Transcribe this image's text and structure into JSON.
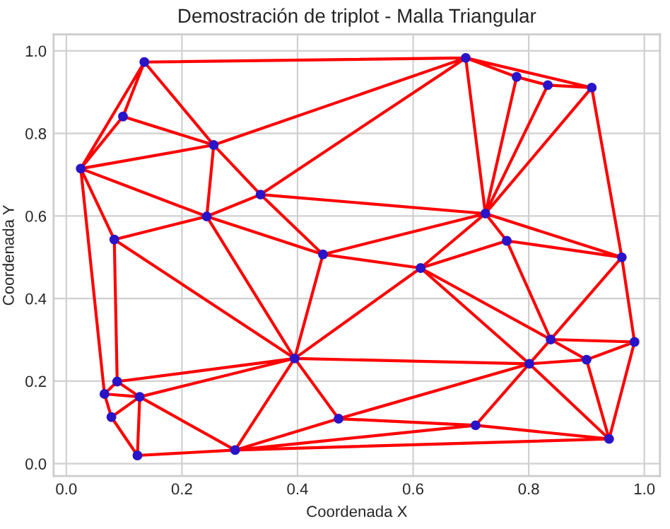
{
  "chart_data": {
    "type": "line",
    "title": "Demostración de triplot - Malla Triangular",
    "xlabel": "Coordenada X",
    "ylabel": "Coordenada Y",
    "xlim": [
      -0.022,
      1.027
    ],
    "ylim": [
      -0.03,
      1.04
    ],
    "xticks": [
      {
        "value": 0,
        "label": "0.0"
      },
      {
        "value": 0.2,
        "label": "0.2"
      },
      {
        "value": 0.4,
        "label": "0.4"
      },
      {
        "value": 0.6,
        "label": "0.6"
      },
      {
        "value": 0.8,
        "label": "0.8"
      },
      {
        "value": 1,
        "label": "1.0"
      }
    ],
    "yticks": [
      {
        "value": 0,
        "label": "0.0"
      },
      {
        "value": 0.2,
        "label": "0.2"
      },
      {
        "value": 0.4,
        "label": "0.4"
      },
      {
        "value": 0.6,
        "label": "0.6"
      },
      {
        "value": 0.8,
        "label": "0.8"
      },
      {
        "value": 1,
        "label": "1.0"
      }
    ],
    "grid": true,
    "series": [
      {
        "color": "#ff0000",
        "line_style": "solid",
        "marker": "none",
        "x": [
          0.691,
          0.135,
          0.098,
          0.025,
          0.135,
          0.255,
          0.098,
          null,
          0.025,
          0.255,
          0.691,
          0.336,
          0.255,
          0.243,
          0.025,
          0.083,
          0.243,
          0.336,
          0.444,
          0.243,
          0.395,
          0.083,
          0.088,
          null,
          0.025,
          0.066,
          0.088,
          0.127,
          0.066,
          0.078,
          0.127,
          0.123,
          0.078,
          null,
          0.088,
          0.395,
          0.127,
          0.292,
          0.123,
          null,
          0.395,
          0.292,
          0.471,
          0.395,
          0.444,
          0.725,
          0.336,
          null,
          0.444,
          0.613,
          0.395,
          0.801,
          0.471,
          0.708,
          0.292,
          0.939,
          0.708,
          0.801,
          0.939,
          0.9,
          0.983,
          0.939,
          null,
          0.613,
          0.801,
          0.838,
          0.613,
          0.762,
          0.838,
          0.961,
          0.983,
          0.838,
          0.9,
          0.801,
          null,
          0.613,
          0.725,
          0.762,
          0.961,
          0.725,
          0.691,
          0.779,
          0.725,
          0.833,
          0.779,
          null,
          0.691,
          0.909,
          0.833,
          null,
          0.725,
          0.909,
          0.961
        ],
        "values": [
          0.983,
          0.973,
          0.841,
          0.715,
          0.973,
          0.772,
          0.841,
          null,
          0.715,
          0.772,
          0.983,
          0.652,
          0.772,
          0.599,
          0.715,
          0.543,
          0.599,
          0.652,
          0.507,
          0.599,
          0.255,
          0.543,
          0.199,
          null,
          0.715,
          0.169,
          0.199,
          0.162,
          0.169,
          0.113,
          0.162,
          0.02,
          0.113,
          null,
          0.199,
          0.255,
          0.162,
          0.033,
          0.02,
          null,
          0.255,
          0.033,
          0.109,
          0.255,
          0.507,
          0.606,
          0.652,
          null,
          0.507,
          0.474,
          0.255,
          0.242,
          0.109,
          0.093,
          0.033,
          0.06,
          0.093,
          0.242,
          0.06,
          0.252,
          0.295,
          0.06,
          null,
          0.474,
          0.242,
          0.301,
          0.474,
          0.54,
          0.301,
          0.5,
          0.295,
          0.301,
          0.252,
          0.242,
          null,
          0.474,
          0.606,
          0.54,
          0.5,
          0.606,
          0.983,
          0.937,
          0.606,
          0.917,
          0.937,
          null,
          0.983,
          0.911,
          0.917,
          null,
          0.606,
          0.911,
          0.5
        ]
      },
      {
        "type": "scatter",
        "color": "#2a14c8",
        "marker": "circle",
        "x": [
          0.135,
          0.098,
          0.025,
          0.255,
          0.336,
          0.243,
          0.083,
          0.444,
          0.691,
          0.779,
          0.833,
          0.909,
          0.725,
          0.762,
          0.961,
          0.613,
          0.838,
          0.983,
          0.801,
          0.9,
          0.708,
          0.939,
          0.395,
          0.088,
          0.066,
          0.127,
          0.078,
          0.123,
          0.292,
          0.471
        ],
        "values": [
          0.973,
          0.841,
          0.715,
          0.772,
          0.652,
          0.599,
          0.543,
          0.507,
          0.983,
          0.937,
          0.917,
          0.911,
          0.606,
          0.54,
          0.5,
          0.474,
          0.301,
          0.295,
          0.242,
          0.252,
          0.093,
          0.06,
          0.255,
          0.199,
          0.169,
          0.162,
          0.113,
          0.02,
          0.033,
          0.109
        ]
      }
    ]
  }
}
